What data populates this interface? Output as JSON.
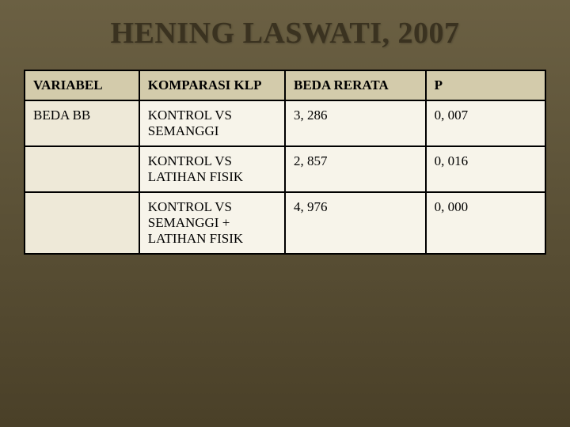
{
  "title": "HENING LASWATI, 2007",
  "table": {
    "columns": [
      "VARIABEL",
      "KOMPARASI KLP",
      "BEDA RERATA",
      "P"
    ],
    "rows": [
      [
        "BEDA BB",
        "KONTROL VS SEMANGGI",
        "3, 286",
        "0, 007"
      ],
      [
        "",
        "KONTROL VS LATIHAN FISIK",
        "2, 857",
        "0, 016"
      ],
      [
        "",
        "KONTROL VS SEMANGGI + LATIHAN FISIK",
        "4, 976",
        "0, 000"
      ]
    ],
    "header_bg": "#d3cbab",
    "col1_bg": "#eee9d8",
    "data_bg": "#f7f4ea",
    "border_color": "#000000",
    "title_color": "#3a3220"
  }
}
